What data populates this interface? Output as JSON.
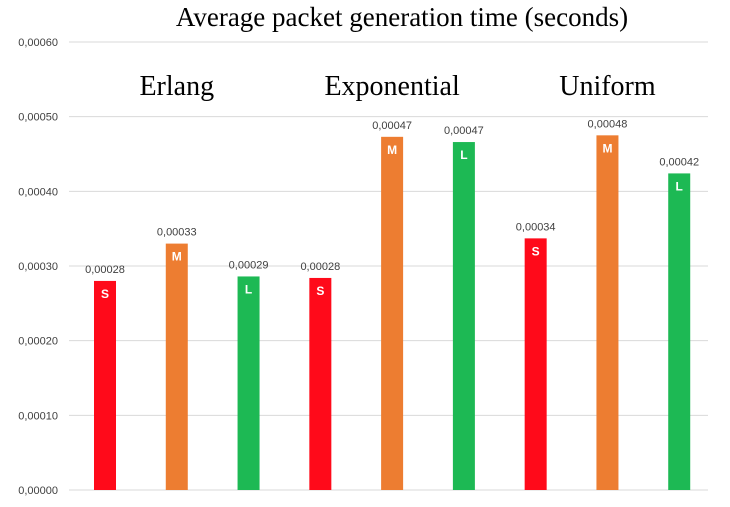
{
  "chart_data": {
    "type": "bar",
    "title": "Average packet generation time (seconds)",
    "xlabel": "",
    "ylabel": "",
    "ylim": [
      0,
      0.0006
    ],
    "yticks": [
      "0,00000",
      "0,00010",
      "0,00020",
      "0,00030",
      "0,00040",
      "0,00050",
      "0,00060"
    ],
    "grid": true,
    "legend": "none",
    "groups": [
      "Erlang",
      "Exponential",
      "Uniform"
    ],
    "bars": [
      {
        "group": "Erlang",
        "code": "S",
        "value": 0.00028,
        "label": "0,00028",
        "color": "#ff0a1a"
      },
      {
        "group": "Erlang",
        "code": "M",
        "value": 0.00033,
        "label": "0,00033",
        "color": "#ed7d31"
      },
      {
        "group": "Erlang",
        "code": "L",
        "value": 0.000286,
        "label": "0,00029",
        "color": "#1db954"
      },
      {
        "group": "Exponential",
        "code": "S",
        "value": 0.000284,
        "label": "0,00028",
        "color": "#ff0a1a"
      },
      {
        "group": "Exponential",
        "code": "M",
        "value": 0.000473,
        "label": "0,00047",
        "color": "#ed7d31"
      },
      {
        "group": "Exponential",
        "code": "L",
        "value": 0.000466,
        "label": "0,00047",
        "color": "#1db954"
      },
      {
        "group": "Uniform",
        "code": "S",
        "value": 0.000337,
        "label": "0,00034",
        "color": "#ff0a1a"
      },
      {
        "group": "Uniform",
        "code": "M",
        "value": 0.000475,
        "label": "0,00048",
        "color": "#ed7d31"
      },
      {
        "group": "Uniform",
        "code": "L",
        "value": 0.000424,
        "label": "0,00042",
        "color": "#1db954"
      }
    ]
  }
}
